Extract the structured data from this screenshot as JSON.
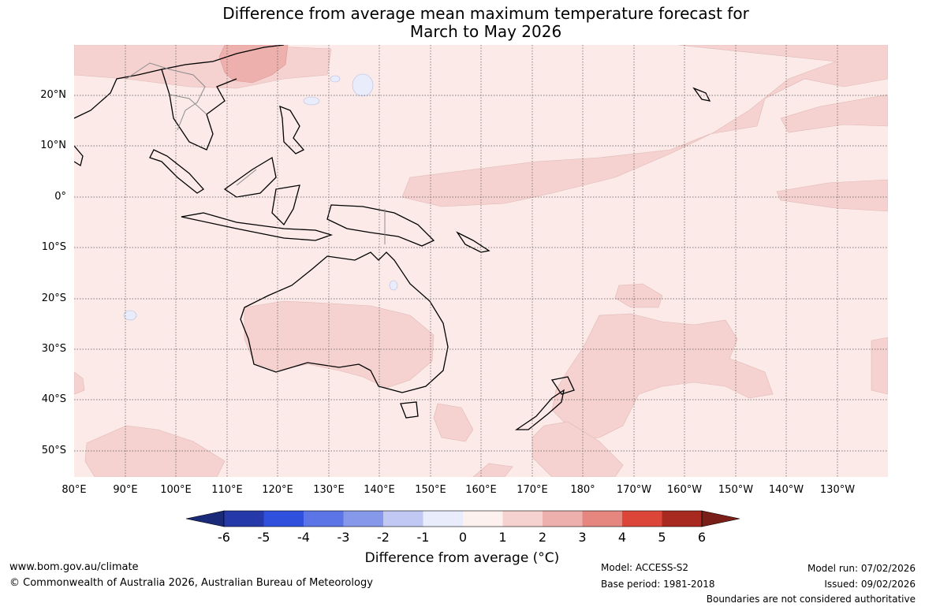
{
  "title": {
    "line1": "Difference from average mean maximum temperature forecast for",
    "line2": "March to May 2026"
  },
  "map": {
    "lat_labels": [
      "20°N",
      "10°N",
      "0°",
      "10°S",
      "20°S",
      "30°S",
      "40°S",
      "50°S"
    ],
    "lon_labels": [
      "80°E",
      "90°E",
      "100°E",
      "110°E",
      "120°E",
      "130°E",
      "140°E",
      "150°E",
      "160°E",
      "170°E",
      "180°",
      "170°W",
      "160°W",
      "150°W",
      "140°W",
      "130°W"
    ],
    "background_category": "0 to 1",
    "colors": {
      "ocean_0_1": "#fbeae8",
      "warm_1_2": "#f5d2d0",
      "warm_2_3": "#eeb0ac",
      "cool_m1_0": "#e9ecfb",
      "coast": "#000000",
      "border": "#8c8c8c"
    }
  },
  "colorbar": {
    "labels": [
      "-6",
      "-5",
      "-4",
      "-3",
      "-2",
      "-1",
      "0",
      "1",
      "2",
      "3",
      "4",
      "5",
      "6"
    ],
    "under_color": "#1a2a78",
    "over_color": "#7a1e18",
    "colors": [
      "#2639a8",
      "#2f50dc",
      "#5b75e6",
      "#8598ea",
      "#c0c8f3",
      "#e9ecfb",
      "#fdf1f0",
      "#f5d2d0",
      "#eeb0ac",
      "#e6877f",
      "#db4638",
      "#a8291f"
    ],
    "title": "Difference from average (°C)"
  },
  "footer": {
    "website": "www.bom.gov.au/climate",
    "copyright": "© Commonwealth of Australia 2026, Australian Bureau of Meteorology",
    "model": "Model: ACCESS-S2",
    "base_period": "Base period: 1981-2018",
    "model_run": "Model run: 07/02/2026",
    "issued": "Issued: 09/02/2026",
    "disclaimer": "Boundaries are not considered authoritative"
  }
}
